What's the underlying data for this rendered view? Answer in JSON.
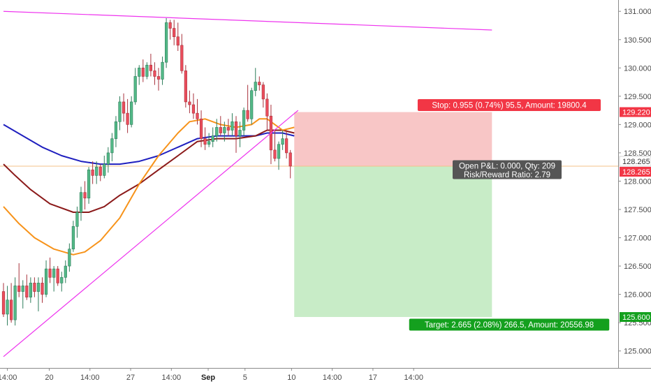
{
  "chart_data": {
    "type": "candlestick",
    "colors": {
      "bull": "#53b987",
      "bear": "#eb4d5c",
      "bull_wick": "#2e7d5b",
      "bear_wick": "#a8323c",
      "ma_fast": "#f7931a",
      "ma_mid": "#8b1a1a",
      "ma_slow": "#1f1fbf",
      "trendline": "#ee33ee",
      "stop_zone": "#f8c6c6",
      "target_zone": "#c8ecc7",
      "stop_label": "#f23645",
      "target_label": "#14a01e",
      "info_label": "#555555",
      "entry_line": "#f5c08a"
    },
    "y_axis": {
      "min": 124.7,
      "max": 131.2,
      "ticks": [
        {
          "value": 131.0,
          "label": "131.000"
        },
        {
          "value": 130.5,
          "label": "130.500"
        },
        {
          "value": 130.0,
          "label": "130.000"
        },
        {
          "value": 129.5,
          "label": "129.500"
        },
        {
          "value": 129.0,
          "label": "129.000"
        },
        {
          "value": 128.5,
          "label": "128.500"
        },
        {
          "value": 128.0,
          "label": "128.000"
        },
        {
          "value": 127.5,
          "label": "127.500"
        },
        {
          "value": 127.0,
          "label": "127.000"
        },
        {
          "value": 126.5,
          "label": "126.500"
        },
        {
          "value": 126.0,
          "label": "126.000"
        },
        {
          "value": 125.5,
          "label": "125.500"
        },
        {
          "value": 125.0,
          "label": "125.000"
        }
      ]
    },
    "x_axis": {
      "ticks": [
        {
          "bar": 1.0,
          "label": "14:00",
          "bold": false
        },
        {
          "bar": 11.8,
          "label": "20",
          "bold": false
        },
        {
          "bar": 22.3,
          "label": "14:00",
          "bold": false
        },
        {
          "bar": 32.8,
          "label": "27",
          "bold": false
        },
        {
          "bar": 43.3,
          "label": "14:00",
          "bold": false
        },
        {
          "bar": 52.8,
          "label": "Sep",
          "bold": true
        },
        {
          "bar": 62.3,
          "label": "5",
          "bold": false
        },
        {
          "bar": 74.3,
          "label": "10",
          "bold": false
        },
        {
          "bar": 84.8,
          "label": "14:00",
          "bold": false
        },
        {
          "bar": 95.3,
          "label": "17",
          "bold": false
        },
        {
          "bar": 105.8,
          "label": "14:00",
          "bold": false
        }
      ]
    },
    "candles_ohlc": [
      [
        126.05,
        126.2,
        125.6,
        125.65
      ],
      [
        125.65,
        126.15,
        125.45,
        125.9
      ],
      [
        125.9,
        126.2,
        125.5,
        125.55
      ],
      [
        125.55,
        126.3,
        125.45,
        126.15
      ],
      [
        126.15,
        126.55,
        125.95,
        126.05
      ],
      [
        126.05,
        126.25,
        125.75,
        126.15
      ],
      [
        126.15,
        126.35,
        125.9,
        125.95
      ],
      [
        125.95,
        126.3,
        125.85,
        126.2
      ],
      [
        126.2,
        126.3,
        125.95,
        126.05
      ],
      [
        126.05,
        126.3,
        125.7,
        126.2
      ],
      [
        126.2,
        126.3,
        125.85,
        126.0
      ],
      [
        126.0,
        126.6,
        125.95,
        126.45
      ],
      [
        126.45,
        126.65,
        126.2,
        126.3
      ],
      [
        126.3,
        126.5,
        126.05,
        126.45
      ],
      [
        126.45,
        126.5,
        126.15,
        126.2
      ],
      [
        126.2,
        126.4,
        126.05,
        126.3
      ],
      [
        126.3,
        126.6,
        126.2,
        126.5
      ],
      [
        126.5,
        126.9,
        126.4,
        126.8
      ],
      [
        126.8,
        127.3,
        126.75,
        127.2
      ],
      [
        127.2,
        127.55,
        127.0,
        127.45
      ],
      [
        127.45,
        127.9,
        127.3,
        127.8
      ],
      [
        127.8,
        128.0,
        127.5,
        127.7
      ],
      [
        127.7,
        128.25,
        127.6,
        128.2
      ],
      [
        128.2,
        128.35,
        127.95,
        128.1
      ],
      [
        128.1,
        128.35,
        127.95,
        128.25
      ],
      [
        128.25,
        128.3,
        128.0,
        128.1
      ],
      [
        128.1,
        128.45,
        128.05,
        128.3
      ],
      [
        128.3,
        128.6,
        128.15,
        128.5
      ],
      [
        128.5,
        128.85,
        128.35,
        128.75
      ],
      [
        128.75,
        129.15,
        128.6,
        129.05
      ],
      [
        129.05,
        129.5,
        128.9,
        129.4
      ],
      [
        129.4,
        129.55,
        129.05,
        129.2
      ],
      [
        129.2,
        129.45,
        128.85,
        129.0
      ],
      [
        129.0,
        129.5,
        128.95,
        129.4
      ],
      [
        129.4,
        130.0,
        129.35,
        129.85
      ],
      [
        129.85,
        130.05,
        129.7,
        130.0
      ],
      [
        130.0,
        130.15,
        129.75,
        129.85
      ],
      [
        129.85,
        130.1,
        129.8,
        130.05
      ],
      [
        130.05,
        130.25,
        129.85,
        129.95
      ],
      [
        129.95,
        130.1,
        129.7,
        129.85
      ],
      [
        129.85,
        130.0,
        129.6,
        129.8
      ],
      [
        129.8,
        130.2,
        129.7,
        130.1
      ],
      [
        130.1,
        130.88,
        130.0,
        130.8
      ],
      [
        130.8,
        130.85,
        130.5,
        130.7
      ],
      [
        130.7,
        130.85,
        130.4,
        130.55
      ],
      [
        130.55,
        130.8,
        130.3,
        130.4
      ],
      [
        130.4,
        130.6,
        129.9,
        129.95
      ],
      [
        129.95,
        130.05,
        129.3,
        129.4
      ],
      [
        129.4,
        129.6,
        129.2,
        129.35
      ],
      [
        129.35,
        129.55,
        129.1,
        129.2
      ],
      [
        129.2,
        129.45,
        129.0,
        129.1
      ],
      [
        129.1,
        129.25,
        128.6,
        128.75
      ],
      [
        128.75,
        128.95,
        128.55,
        128.65
      ],
      [
        128.65,
        128.85,
        128.6,
        128.7
      ],
      [
        128.7,
        128.95,
        128.6,
        128.8
      ],
      [
        128.8,
        129.1,
        128.7,
        128.95
      ],
      [
        128.95,
        129.15,
        128.8,
        128.85
      ],
      [
        128.85,
        129.05,
        128.7,
        128.95
      ],
      [
        128.95,
        129.1,
        128.8,
        128.9
      ],
      [
        128.9,
        129.2,
        128.8,
        129.05
      ],
      [
        129.05,
        129.15,
        128.5,
        128.8
      ],
      [
        128.8,
        129.05,
        128.6,
        128.9
      ],
      [
        128.9,
        129.3,
        128.8,
        129.25
      ],
      [
        129.25,
        129.7,
        129.05,
        129.1
      ],
      [
        129.1,
        129.65,
        129.0,
        129.6
      ],
      [
        129.6,
        130.0,
        129.5,
        129.75
      ],
      [
        129.75,
        129.85,
        129.6,
        129.7
      ],
      [
        129.7,
        129.75,
        129.3,
        129.45
      ],
      [
        129.45,
        129.55,
        128.9,
        129.15
      ],
      [
        129.15,
        129.35,
        128.3,
        128.55
      ],
      [
        128.55,
        128.9,
        128.35,
        128.4
      ],
      [
        128.4,
        128.7,
        128.2,
        128.65
      ],
      [
        128.65,
        128.9,
        128.55,
        128.75
      ],
      [
        128.75,
        128.9,
        128.4,
        128.5
      ],
      [
        128.5,
        128.55,
        128.05,
        128.265
      ]
    ],
    "first_bar_x": 5,
    "bar_spacing": 5.55,
    "moving_averages": [
      {
        "key": "ma_slow",
        "points": [
          [
            0,
            129.0
          ],
          [
            5,
            128.8
          ],
          [
            10,
            128.6
          ],
          [
            15,
            128.45
          ],
          [
            20,
            128.35
          ],
          [
            25,
            128.3
          ],
          [
            30,
            128.3
          ],
          [
            35,
            128.35
          ],
          [
            40,
            128.45
          ],
          [
            45,
            128.6
          ],
          [
            50,
            128.75
          ],
          [
            55,
            128.8
          ],
          [
            60,
            128.8
          ],
          [
            65,
            128.8
          ],
          [
            68,
            128.85
          ],
          [
            72,
            128.85
          ],
          [
            75,
            128.8
          ]
        ]
      },
      {
        "key": "ma_mid",
        "points": [
          [
            0,
            128.3
          ],
          [
            3,
            128.1
          ],
          [
            7,
            127.85
          ],
          [
            12,
            127.6
          ],
          [
            18,
            127.45
          ],
          [
            22,
            127.45
          ],
          [
            26,
            127.55
          ],
          [
            30,
            127.75
          ],
          [
            35,
            127.95
          ],
          [
            40,
            128.2
          ],
          [
            45,
            128.45
          ],
          [
            50,
            128.7
          ],
          [
            55,
            128.75
          ],
          [
            60,
            128.75
          ],
          [
            65,
            128.8
          ],
          [
            68,
            128.9
          ],
          [
            72,
            128.9
          ],
          [
            75,
            128.85
          ]
        ]
      },
      {
        "key": "ma_fast",
        "points": [
          [
            0,
            127.55
          ],
          [
            4,
            127.25
          ],
          [
            8,
            127.0
          ],
          [
            13,
            126.8
          ],
          [
            18,
            126.7
          ],
          [
            21,
            126.75
          ],
          [
            25,
            126.95
          ],
          [
            30,
            127.35
          ],
          [
            35,
            127.95
          ],
          [
            40,
            128.45
          ],
          [
            45,
            128.85
          ],
          [
            48,
            129.05
          ],
          [
            52,
            129.1
          ],
          [
            56,
            129.0
          ],
          [
            60,
            128.95
          ],
          [
            64,
            129.0
          ],
          [
            66,
            129.1
          ],
          [
            68,
            129.1
          ],
          [
            70,
            129.0
          ],
          [
            72,
            128.9
          ],
          [
            75,
            128.95
          ]
        ]
      }
    ],
    "trendlines": [
      {
        "from": [
          0,
          124.9
        ],
        "to": [
          76,
          129.25
        ]
      },
      {
        "from": [
          0,
          131.0
        ],
        "to": [
          126,
          130.67
        ]
      }
    ],
    "position": {
      "entry": 128.265,
      "stop": 129.22,
      "target": 125.6,
      "start_bar": 75,
      "end_bar": 126,
      "stop_label": "Stop: 0.955 (0.74%) 95.5, Amount: 19800.4",
      "target_label": "Target: 2.665 (2.08%) 266.5, Amount: 20556.98",
      "info_line1": "Open P&L: 0.000, Qty: 209",
      "info_line2": "Risk/Reward Ratio: 2.79",
      "axis_labels": [
        {
          "value": 129.22,
          "text": "129.220",
          "style": "stop"
        },
        {
          "value": 128.265,
          "text": "128.265",
          "style": "entry_top"
        },
        {
          "value": 128.265,
          "text": "128.265",
          "style": "entry_bottom"
        },
        {
          "value": 125.6,
          "text": "125.600",
          "style": "target"
        }
      ]
    }
  }
}
